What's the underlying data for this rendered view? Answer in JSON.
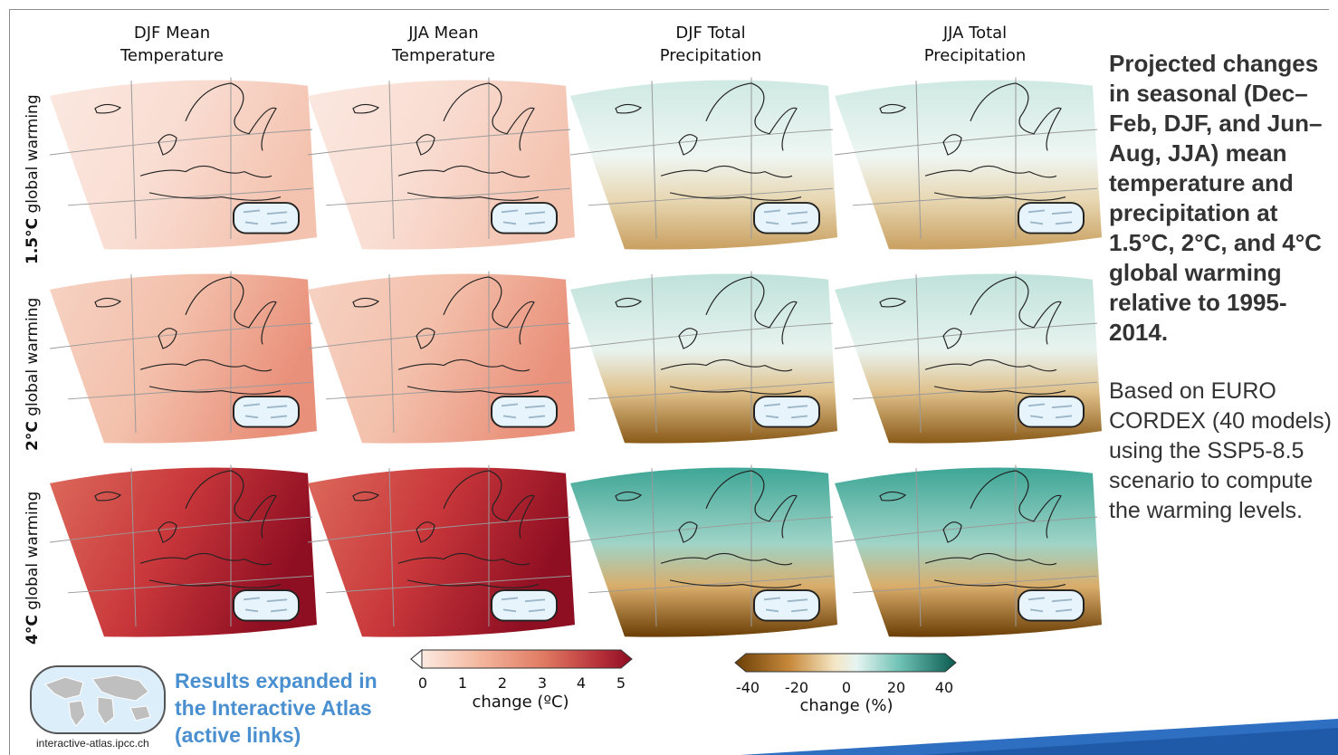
{
  "columns": [
    "DJF Mean\nTemperature",
    "JJA Mean\nTemperature",
    "DJF Total\nPrecipitation",
    "JJA Total\nPrecipitation"
  ],
  "column_lines": [
    [
      "DJF Mean",
      "Temperature"
    ],
    [
      "JJA Mean",
      "Temperature"
    ],
    [
      "DJF Total",
      "Precipitation"
    ],
    [
      "JJA Total",
      "Precipitation"
    ]
  ],
  "rows": [
    {
      "bold": "1.5°C",
      "rest": " global warming"
    },
    {
      "bold": "2°C",
      "rest": " global warming"
    },
    {
      "bold": "4°C",
      "rest": " global warming"
    }
  ],
  "title": "Projected changes in seasonal (Dec–Feb, DJF, and Jun–Aug, JJA) mean temperature and precipitation at 1.5°C, 2°C, and 4°C global warming relative to 1995-2014.",
  "body": "Based on EURO CORDEX (40 models) using the SSP5-8.5 scenario to compute the warming levels.",
  "temp_colorbar": {
    "ticks": [
      "0",
      "1",
      "2",
      "3",
      "4",
      "5"
    ],
    "label": "change (ºC)"
  },
  "precip_colorbar": {
    "ticks": [
      "-40",
      "-20",
      "0",
      "20",
      "40"
    ],
    "label": "change (%)"
  },
  "atlas": {
    "link_text": "Results expanded in the Interactive Atlas (active links)",
    "url": "interactive-atlas.ipcc.ch"
  },
  "colors": {
    "temp_low": "#fbe9e2",
    "temp_mid": "#e58f72",
    "temp_high": "#a61c27",
    "dry": "#8a5410",
    "wet": "#2c8f85",
    "accent": "#4a90d0"
  },
  "maps": [
    [
      {
        "tone": "temp1"
      },
      {
        "tone": "temp1"
      },
      {
        "tone": "prec1"
      },
      {
        "tone": "prec1"
      }
    ],
    [
      {
        "tone": "temp2"
      },
      {
        "tone": "temp2"
      },
      {
        "tone": "prec2"
      },
      {
        "tone": "prec2"
      }
    ],
    [
      {
        "tone": "temp4"
      },
      {
        "tone": "temp4"
      },
      {
        "tone": "prec4"
      },
      {
        "tone": "prec4"
      }
    ]
  ]
}
